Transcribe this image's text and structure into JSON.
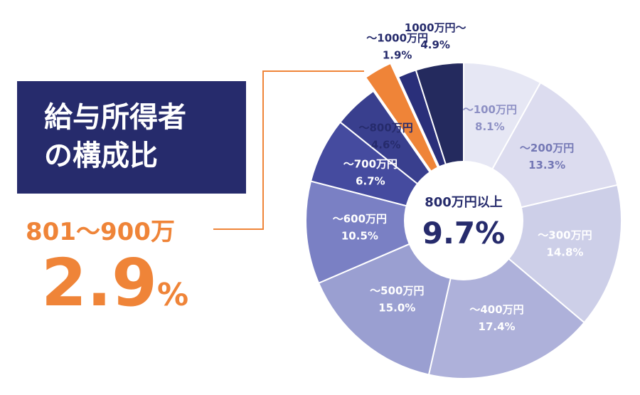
{
  "title": {
    "line1": "給与所得者",
    "line2": "の構成比"
  },
  "callout": {
    "label": "801〜900万",
    "value": "2.9",
    "unit": "%"
  },
  "center": {
    "label": "800万円以上",
    "value": "9.7%"
  },
  "colors": {
    "title_bg": "#262b6c",
    "highlight": "#ef8438",
    "center_text": "#262b6c"
  },
  "chart_data": {
    "type": "pie",
    "title": "給与所得者の構成比",
    "categories": [
      "〜100万円",
      "〜200万円",
      "〜300万円",
      "〜400万円",
      "〜500万円",
      "〜600万円",
      "〜700万円",
      "〜800万円",
      "801〜900万",
      "〜1000万円",
      "1000万円〜"
    ],
    "values": [
      8.1,
      13.3,
      14.8,
      17.4,
      15.0,
      10.5,
      6.7,
      4.6,
      2.9,
      1.9,
      4.9
    ],
    "labels": [
      {
        "name": "〜100万円",
        "value": "8.1%"
      },
      {
        "name": "〜200万円",
        "value": "13.3%"
      },
      {
        "name": "〜300万円",
        "value": "14.8%"
      },
      {
        "name": "〜400万円",
        "value": "17.4%"
      },
      {
        "name": "〜500万円",
        "value": "15.0%"
      },
      {
        "name": "〜600万円",
        "value": "10.5%"
      },
      {
        "name": "〜700万円",
        "value": "6.7%"
      },
      {
        "name": "〜800万円",
        "value": "4.6%"
      },
      null,
      {
        "name": "〜1000万円",
        "value": "1.9%"
      },
      {
        "name": "1000万円〜",
        "value": "4.9%"
      }
    ],
    "colors": [
      "#e6e7f4",
      "#dcdcef",
      "#cdcfe8",
      "#aeb1da",
      "#9a9fd1",
      "#7a80c4",
      "#454b9f",
      "#393f8e",
      "#ef8438",
      "#2a2f7a",
      "#242a5e"
    ],
    "label_colors": [
      "#8d90c4",
      "#7478b5",
      "#ffffff",
      "#ffffff",
      "#ffffff",
      "#ffffff",
      "#ffffff",
      "#262b6c",
      "#262b6c",
      "#262b6c",
      "#262b6c"
    ],
    "highlight_index": 8
  }
}
